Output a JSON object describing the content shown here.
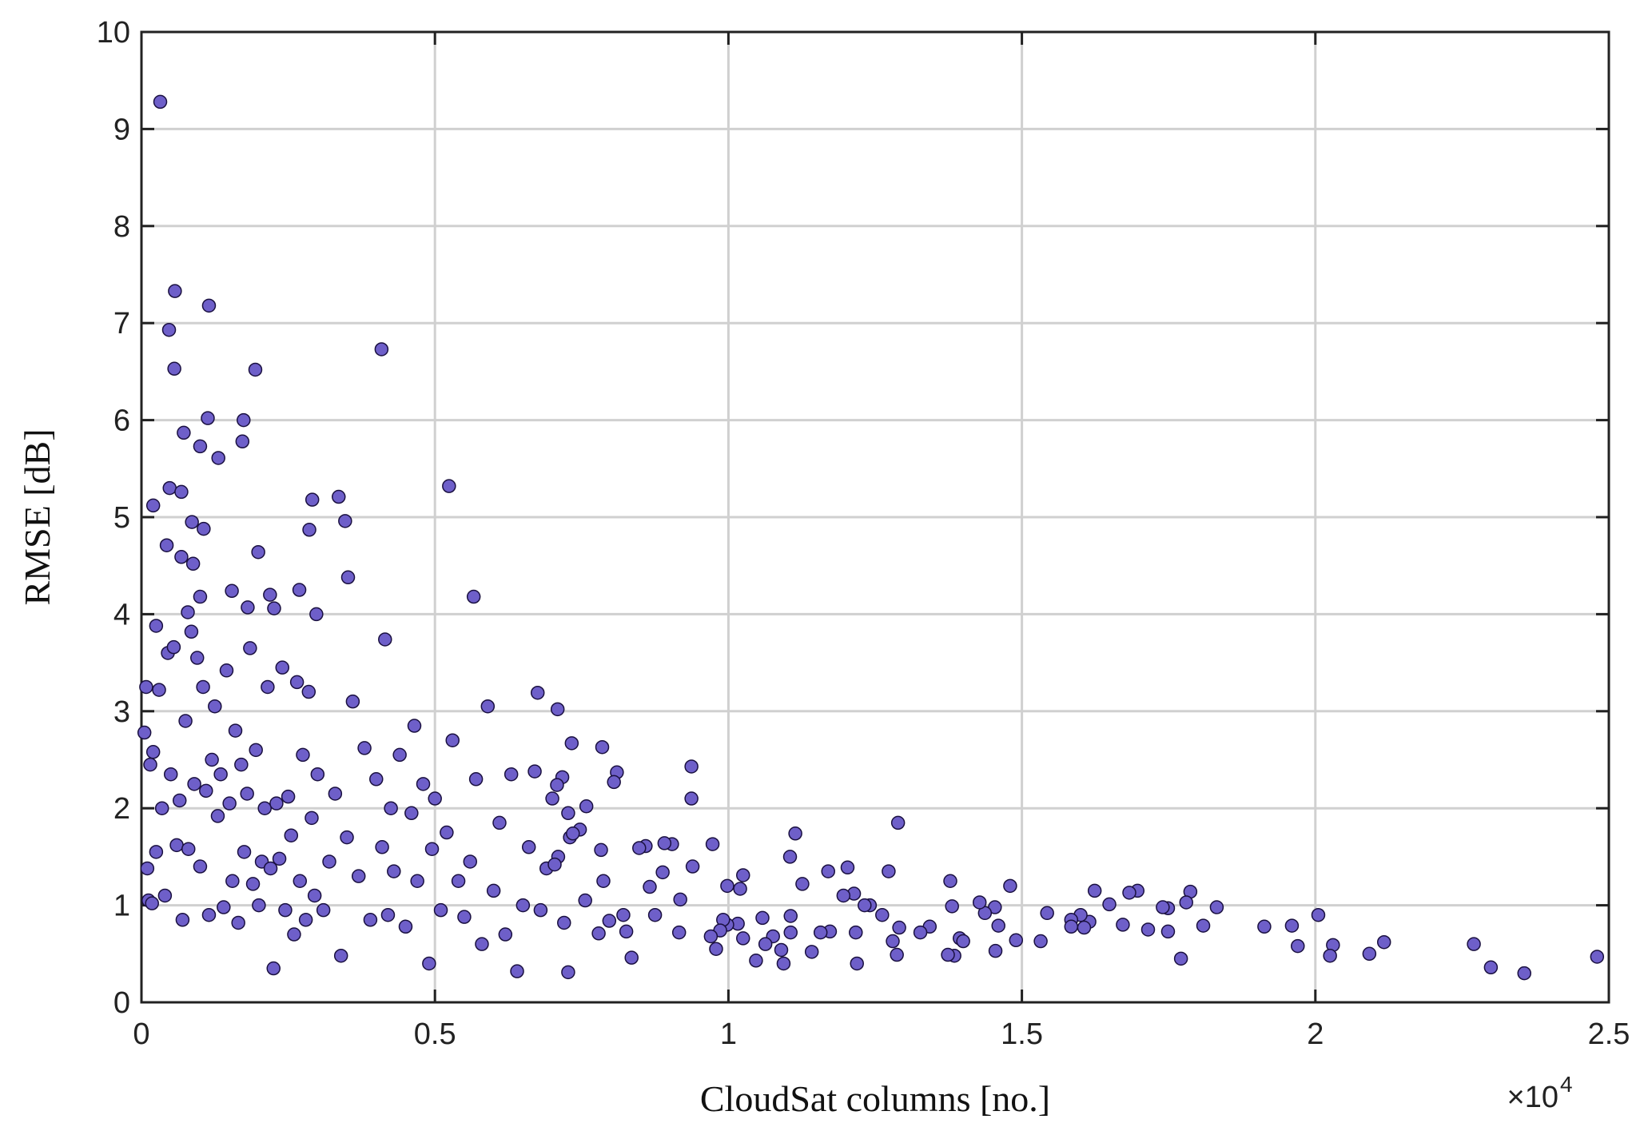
{
  "chart_data": {
    "type": "scatter",
    "xlabel": "CloudSat columns [no.]",
    "ylabel": "RMSE [dB]",
    "x_multiplier": "×10",
    "x_exponent": "4",
    "xlim": [
      0,
      2.5
    ],
    "xticks": [
      0,
      0.5,
      1,
      1.5,
      2,
      2.5
    ],
    "ylim": [
      0,
      10
    ],
    "yticks": [
      0,
      1,
      2,
      3,
      4,
      5,
      6,
      7,
      8,
      9,
      10
    ],
    "grid": true,
    "color": "#6e5fc9",
    "edgecolor": "#1a1040",
    "x": [
      0.032,
      0.057,
      0.115,
      0.047,
      0.056,
      0.194,
      0.409,
      0.113,
      0.174,
      0.072,
      0.172,
      0.131,
      0.1,
      0.048,
      0.524,
      0.068,
      0.336,
      0.291,
      0.02,
      0.086,
      0.106,
      0.347,
      0.286,
      0.043,
      0.199,
      0.068,
      0.088,
      0.352,
      0.154,
      0.566,
      0.219,
      0.1,
      0.269,
      0.181,
      0.079,
      0.298,
      0.226,
      0.025,
      0.005,
      0.008,
      0.01,
      0.012,
      0.015,
      0.018,
      0.02,
      0.025,
      0.03,
      0.035,
      0.04,
      0.045,
      0.05,
      0.055,
      0.06,
      0.065,
      0.07,
      0.075,
      0.08,
      0.085,
      0.09,
      0.095,
      0.1,
      0.105,
      0.11,
      0.115,
      0.12,
      0.125,
      0.13,
      0.135,
      0.14,
      0.145,
      0.15,
      0.155,
      0.16,
      0.165,
      0.17,
      0.175,
      0.18,
      0.185,
      0.19,
      0.195,
      0.2,
      0.205,
      0.21,
      0.215,
      0.22,
      0.225,
      0.23,
      0.235,
      0.24,
      0.245,
      0.25,
      0.255,
      0.26,
      0.265,
      0.27,
      0.275,
      0.28,
      0.285,
      0.29,
      0.295,
      0.3,
      0.31,
      0.32,
      0.33,
      0.34,
      0.35,
      0.36,
      0.37,
      0.38,
      0.39,
      0.4,
      0.41,
      0.415,
      0.42,
      0.425,
      0.43,
      0.44,
      0.45,
      0.46,
      0.465,
      0.47,
      0.48,
      0.49,
      0.495,
      0.5,
      0.51,
      0.52,
      0.53,
      0.54,
      0.55,
      0.56,
      0.57,
      0.58,
      0.59,
      0.6,
      0.61,
      0.62,
      0.63,
      0.64,
      0.65,
      0.66,
      0.67,
      0.68,
      0.69,
      0.7,
      0.71,
      0.72,
      0.73,
      2.005,
      2.03,
      2.025,
      2.092,
      2.117,
      2.27,
      2.299,
      2.356,
      2.48,
      1.96,
      1.97,
      1.913,
      1.832,
      1.809,
      1.787,
      1.78,
      1.749,
      1.74,
      1.749,
      1.771,
      1.697,
      1.683,
      1.715,
      1.649,
      1.624,
      1.672,
      1.615,
      1.606,
      1.6,
      1.584,
      1.584,
      1.543,
      1.532,
      1.49,
      1.48,
      1.46,
      1.454,
      1.455,
      1.437,
      1.428,
      1.394,
      1.4,
      1.385,
      1.374,
      1.381,
      1.378,
      1.343,
      1.327,
      1.289,
      1.287,
      1.291,
      1.28,
      1.273,
      1.262,
      1.241,
      1.232,
      1.219,
      1.217,
      1.214,
      1.196,
      1.203,
      1.173,
      1.17,
      1.157,
      1.142,
      1.126,
      1.114,
      1.105,
      1.106,
      1.106,
      1.094,
      1.09,
      1.076,
      1.063,
      1.058,
      1.047,
      1.025,
      1.02,
      1.016,
      1.025,
      0.998,
      0.998,
      0.991,
      0.986,
      0.979,
      0.973,
      0.97,
      0.937,
      0.937,
      0.939,
      0.918,
      0.916,
      0.904,
      0.891,
      0.888,
      0.875,
      0.866,
      0.859,
      0.848,
      0.835,
      0.826,
      0.821,
      0.81,
      0.805,
      0.797,
      0.787,
      0.785,
      0.783,
      0.779,
      0.758,
      0.756,
      0.747,
      0.735,
      0.733,
      0.727,
      0.727,
      0.717,
      0.709,
      0.708,
      0.704,
      0.675
    ],
    "values": [
      9.28,
      7.33,
      7.18,
      6.93,
      6.53,
      6.52,
      6.73,
      6.02,
      6.0,
      5.87,
      5.78,
      5.61,
      5.73,
      5.3,
      5.32,
      5.26,
      5.21,
      5.18,
      5.12,
      4.95,
      4.88,
      4.96,
      4.87,
      4.71,
      4.64,
      4.59,
      4.52,
      4.38,
      4.24,
      4.18,
      4.2,
      4.18,
      4.25,
      4.07,
      4.02,
      4.0,
      4.06,
      3.88,
      2.78,
      3.25,
      1.38,
      1.05,
      2.45,
      1.02,
      2.58,
      1.55,
      3.22,
      2.0,
      1.1,
      3.6,
      2.35,
      3.66,
      1.62,
      2.08,
      0.85,
      2.9,
      1.58,
      3.82,
      2.25,
      3.55,
      1.4,
      3.25,
      2.18,
      0.9,
      2.5,
      3.05,
      1.92,
      2.35,
      0.98,
      3.42,
      2.05,
      1.25,
      2.8,
      0.82,
      2.45,
      1.55,
      2.15,
      3.65,
      1.22,
      2.6,
      1.0,
      1.45,
      2.0,
      3.25,
      1.38,
      0.35,
      2.05,
      1.48,
      3.45,
      0.95,
      2.12,
      1.72,
      0.7,
      3.3,
      1.25,
      2.55,
      0.85,
      3.2,
      1.9,
      1.1,
      2.35,
      0.95,
      1.45,
      2.15,
      0.48,
      1.7,
      3.1,
      1.3,
      2.62,
      0.85,
      2.3,
      1.6,
      3.74,
      0.9,
      2.0,
      1.35,
      2.55,
      0.78,
      1.95,
      2.85,
      1.25,
      2.25,
      0.4,
      1.58,
      2.1,
      0.95,
      1.75,
      2.7,
      1.25,
      0.88,
      1.45,
      2.3,
      0.6,
      3.05,
      1.15,
      1.85,
      0.7,
      2.35,
      0.32,
      1.0,
      1.6,
      2.38,
      0.95,
      1.38,
      2.1,
      1.5,
      0.82,
      1.7,
      0.9,
      0.59,
      0.48,
      0.5,
      0.62,
      0.6,
      0.36,
      0.3,
      0.47,
      0.79,
      0.58,
      0.78,
      0.98,
      0.79,
      1.14,
      1.03,
      0.97,
      0.98,
      0.73,
      0.45,
      1.15,
      1.13,
      0.75,
      1.01,
      1.15,
      0.8,
      0.83,
      0.77,
      0.9,
      0.85,
      0.78,
      0.92,
      0.63,
      0.64,
      1.2,
      0.79,
      0.98,
      0.53,
      0.92,
      1.03,
      0.66,
      0.63,
      0.48,
      0.49,
      0.99,
      1.25,
      0.78,
      0.72,
      1.85,
      0.49,
      0.77,
      0.63,
      1.35,
      0.9,
      1.0,
      1.0,
      0.4,
      0.72,
      1.12,
      1.1,
      1.39,
      0.73,
      1.35,
      0.72,
      0.52,
      1.22,
      1.74,
      1.5,
      0.89,
      0.72,
      0.4,
      0.54,
      0.68,
      0.6,
      0.87,
      0.43,
      1.31,
      1.17,
      0.81,
      0.66,
      0.8,
      1.2,
      0.85,
      0.74,
      0.55,
      1.63,
      0.68,
      2.1,
      2.43,
      1.4,
      1.06,
      0.72,
      1.63,
      1.64,
      1.34,
      0.9,
      1.19,
      1.61,
      1.59,
      0.46,
      0.73,
      0.9,
      2.37,
      2.27,
      0.84,
      1.25,
      2.63,
      1.57,
      0.71,
      2.02,
      1.05,
      1.78,
      1.74,
      2.67,
      1.95,
      0.31,
      2.32,
      3.02,
      2.24,
      1.42,
      3.19
    ]
  }
}
